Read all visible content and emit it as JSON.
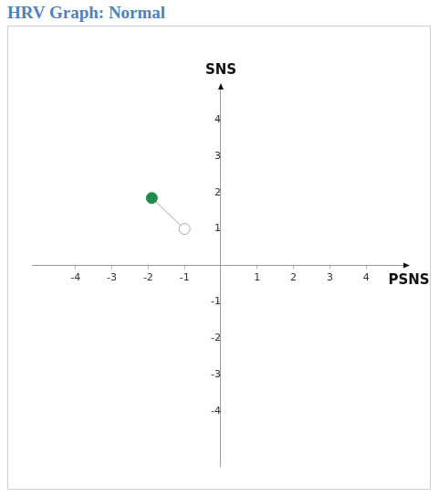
{
  "chart_data": {
    "type": "scatter",
    "title": "HRV Graph: Normal",
    "x_label": "PSNS",
    "y_label": "SNS",
    "x": [
      -1.9,
      -1
    ],
    "values": [
      1.85,
      1
    ],
    "colors": [
      "#1e8a4c",
      "#ffffff"
    ],
    "color": "#c8c8c8",
    "marker": "circle",
    "line_style": "solid",
    "xlim": [
      -5.2,
      5.1
    ],
    "ylim": [
      -5.5,
      4.9
    ],
    "xticks": [
      -4,
      -3,
      -2,
      -1,
      1,
      2,
      3,
      4
    ],
    "yticks": [
      -4,
      -3,
      -2,
      -1,
      1,
      2,
      3,
      4
    ],
    "grid": false
  }
}
